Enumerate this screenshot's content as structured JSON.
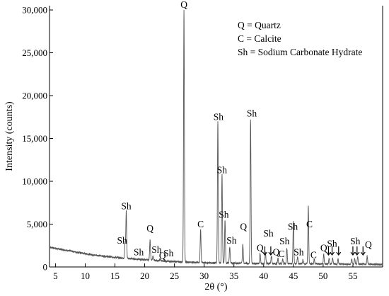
{
  "chart_data": {
    "type": "line",
    "title": "",
    "xlabel": "2θ (°)",
    "ylabel": "Intensity (counts)",
    "xlim": [
      4,
      60
    ],
    "ylim": [
      0,
      30500
    ],
    "x_ticks": [
      5,
      10,
      15,
      20,
      25,
      30,
      35,
      40,
      45,
      50,
      55
    ],
    "y_ticks": [
      0,
      5000,
      10000,
      15000,
      20000,
      25000,
      30000
    ],
    "y_tick_labels": [
      "0",
      "5,000",
      "10,000",
      "15,000",
      "20,000",
      "25,000",
      "30,000"
    ],
    "grid": false,
    "legend_position": "top-right",
    "legend": [
      "Q = Quartz",
      "C = Calcite",
      "Sh = Sodium Carbonate Hydrate"
    ],
    "series": [
      {
        "baseline": [
          [
            4,
            2300
          ],
          [
            6,
            2050
          ],
          [
            8,
            1800
          ],
          [
            10,
            1550
          ],
          [
            12,
            1350
          ],
          [
            14,
            1200
          ],
          [
            16,
            1050
          ],
          [
            18,
            950
          ],
          [
            20,
            850
          ],
          [
            22,
            750
          ],
          [
            24,
            650
          ],
          [
            26,
            600
          ],
          [
            28,
            550
          ],
          [
            30,
            500
          ],
          [
            32,
            480
          ],
          [
            34,
            460
          ],
          [
            36,
            440
          ],
          [
            38,
            420
          ],
          [
            40,
            400
          ],
          [
            42,
            390
          ],
          [
            44,
            380
          ],
          [
            46,
            370
          ],
          [
            48,
            360
          ],
          [
            50,
            350
          ],
          [
            52,
            340
          ],
          [
            54,
            330
          ],
          [
            56,
            320
          ],
          [
            58,
            310
          ],
          [
            60,
            300
          ]
        ],
        "peaks": [
          [
            16.7,
            2800
          ],
          [
            16.9,
            6500
          ],
          [
            18.8,
            900
          ],
          [
            20.9,
            3200
          ],
          [
            21.4,
            1300
          ],
          [
            22.6,
            900
          ],
          [
            23.3,
            700
          ],
          [
            26.6,
            30000
          ],
          [
            29.4,
            4400
          ],
          [
            32.3,
            17000
          ],
          [
            33.0,
            10800
          ],
          [
            33.5,
            5500
          ],
          [
            34.3,
            2300
          ],
          [
            36.5,
            2700
          ],
          [
            37.8,
            17300
          ],
          [
            39.4,
            1600
          ],
          [
            40.3,
            1700
          ],
          [
            41.3,
            1300
          ],
          [
            42.4,
            1000
          ],
          [
            43.2,
            900
          ],
          [
            43.9,
            2200
          ],
          [
            45.0,
            5300
          ],
          [
            45.7,
            1200
          ],
          [
            46.6,
            800
          ],
          [
            47.5,
            7200
          ],
          [
            48.5,
            900
          ],
          [
            50.1,
            1500
          ],
          [
            51.0,
            1000
          ],
          [
            51.6,
            1100
          ],
          [
            52.5,
            900
          ],
          [
            54.8,
            900
          ],
          [
            55.3,
            1000
          ],
          [
            55.8,
            1200
          ],
          [
            57.4,
            1300
          ]
        ]
      }
    ],
    "annotations": [
      {
        "text": "Q",
        "x": 26.6,
        "y": 30000
      },
      {
        "text": "Sh",
        "x": 38.0,
        "y": 17300
      },
      {
        "text": "Sh",
        "x": 32.4,
        "y": 16900
      },
      {
        "text": "Sh",
        "x": 33.0,
        "y": 10700
      },
      {
        "text": "Sh",
        "x": 16.9,
        "y": 6500
      },
      {
        "text": "Sh",
        "x": 33.3,
        "y": 5500
      },
      {
        "text": "C",
        "x": 29.4,
        "y": 4400
      },
      {
        "text": "Q",
        "x": 20.9,
        "y": 3900
      },
      {
        "text": "Q",
        "x": 36.6,
        "y": 4100
      },
      {
        "text": "C",
        "x": 47.7,
        "y": 4400
      },
      {
        "text": "Sh",
        "x": 44.9,
        "y": 4100
      },
      {
        "text": "Sh",
        "x": 34.6,
        "y": 2500
      },
      {
        "text": "Sh",
        "x": 43.5,
        "y": 2400
      },
      {
        "text": "Sh",
        "x": 16.2,
        "y": 2500
      },
      {
        "text": "Sh",
        "x": 40.8,
        "y": 3300
      },
      {
        "text": "Sh",
        "x": 51.5,
        "y": 2100
      },
      {
        "text": "Sh",
        "x": 55.4,
        "y": 2400
      },
      {
        "text": "Q",
        "x": 57.6,
        "y": 2000
      },
      {
        "text": "Q",
        "x": 39.4,
        "y": 1600
      },
      {
        "text": "Q",
        "x": 50.1,
        "y": 1600
      },
      {
        "text": "Q",
        "x": 42.1,
        "y": 1100
      },
      {
        "text": "C",
        "x": 43.0,
        "y": 900
      },
      {
        "text": "Sh",
        "x": 45.9,
        "y": 1100
      },
      {
        "text": "C",
        "x": 48.4,
        "y": 800
      },
      {
        "text": "Sh",
        "x": 19.0,
        "y": 1100
      },
      {
        "text": "Sh",
        "x": 22.0,
        "y": 1400
      },
      {
        "text": "Sh",
        "x": 24.0,
        "y": 1000
      },
      {
        "text": "Q",
        "x": 23.0,
        "y": 700
      }
    ],
    "arrow_markers": [
      40.2,
      41.2,
      50.9,
      51.5,
      52.6,
      55.0,
      55.7,
      56.7
    ]
  }
}
